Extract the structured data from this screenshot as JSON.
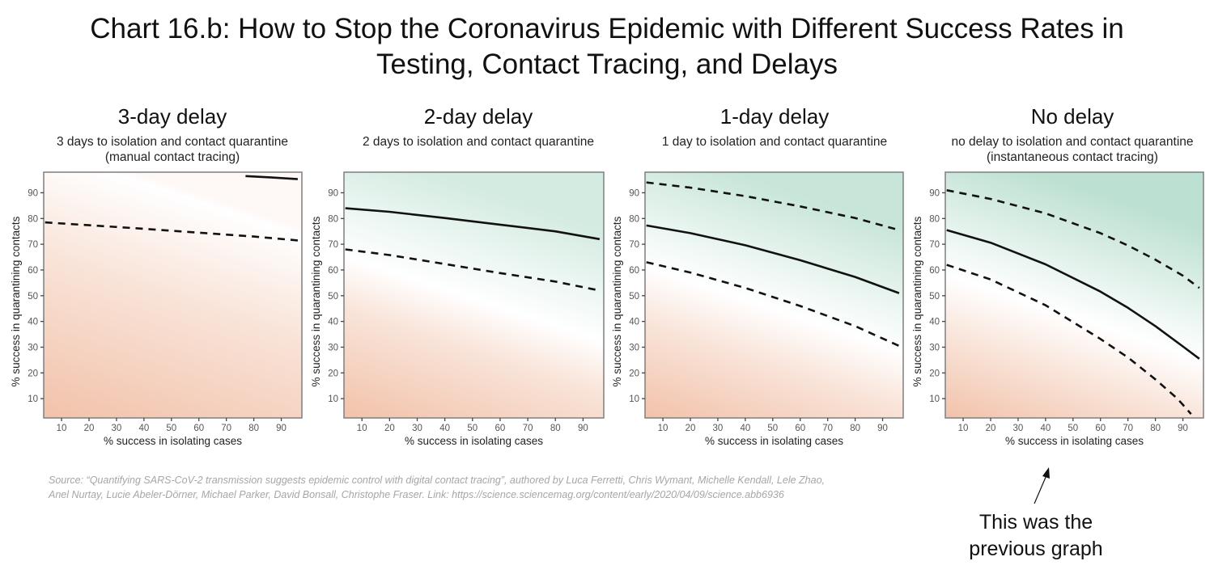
{
  "title_line1": "Chart 16.b: How to Stop the Coronavirus Epidemic with Different Success Rates in",
  "title_line2": "Testing, Contact Tracing, and Delays",
  "colors": {
    "salmon": "#f2c2aa",
    "white": "#ffffff",
    "green": "#a6d6c1",
    "line": "#111111",
    "frame": "#7f7f7f",
    "tick_text": "#555555"
  },
  "source": {
    "line1": "Source: “Quantifying SARS-CoV-2 transmission suggests epidemic control with digital contact tracing”, authored by Luca Ferretti, Chris Wymant, Michelle Kendall, Lele Zhao,",
    "line2": "Anel Nurtay, Lucie Abeler-Dörner, Michael Parker, David Bonsall, Christophe Fraser. Link: https://science.sciencemag.org/content/early/2020/04/09/science.abb6936"
  },
  "annotation": {
    "line1": "This was the",
    "line2": "previous graph"
  },
  "chart_data": [
    {
      "type": "line",
      "title": "3-day delay",
      "subtitle": "3 days to isolation and contact quarantine\n(manual contact tracing)",
      "xlabel": "% success in isolating cases",
      "ylabel": "% success in quarantining contacts",
      "xlim": [
        3.5,
        97.5
      ],
      "ylim": [
        2.5,
        98
      ],
      "xticks": [
        10,
        20,
        30,
        40,
        50,
        60,
        70,
        80,
        90
      ],
      "yticks": [
        10,
        20,
        30,
        40,
        50,
        60,
        70,
        80,
        90
      ],
      "background": "gradient: salmon (epidemic grows) to green (epidemic controlled)",
      "green_strength": 0.0,
      "series": [
        {
          "name": "R=1 threshold",
          "style": "solid",
          "x": [
            77,
            86,
            96
          ],
          "y": [
            96.5,
            96,
            95.3
          ]
        },
        {
          "name": "bound",
          "style": "dashed",
          "x": [
            4,
            20,
            40,
            60,
            80,
            96
          ],
          "y": [
            78.5,
            77.4,
            76,
            74.5,
            73,
            71.5
          ]
        }
      ]
    },
    {
      "type": "line",
      "title": "2-day delay",
      "subtitle": "2 days to isolation and contact quarantine",
      "xlabel": "% success in isolating cases",
      "ylabel": "% success in quarantining contacts",
      "xlim": [
        3.5,
        97.5
      ],
      "ylim": [
        2.5,
        98
      ],
      "xticks": [
        10,
        20,
        30,
        40,
        50,
        60,
        70,
        80,
        90
      ],
      "yticks": [
        10,
        20,
        30,
        40,
        50,
        60,
        70,
        80,
        90
      ],
      "background": "gradient: salmon (epidemic grows) to green (epidemic controlled)",
      "green_strength": 0.35,
      "series": [
        {
          "name": "R=1 threshold",
          "style": "solid",
          "x": [
            4,
            20,
            40,
            60,
            80,
            96
          ],
          "y": [
            84,
            82.6,
            80.2,
            77.6,
            75,
            72
          ]
        },
        {
          "name": "bound",
          "style": "dashed",
          "x": [
            4,
            20,
            40,
            60,
            80,
            96
          ],
          "y": [
            68,
            65.8,
            62.3,
            58.8,
            55.5,
            52
          ]
        }
      ]
    },
    {
      "type": "line",
      "title": "1-day delay",
      "subtitle": "1 day to isolation and contact quarantine",
      "xlabel": "% success in isolating cases",
      "ylabel": "% success in quarantining contacts",
      "xlim": [
        3.5,
        97.5
      ],
      "ylim": [
        2.5,
        98
      ],
      "xticks": [
        10,
        20,
        30,
        40,
        50,
        60,
        70,
        80,
        90
      ],
      "yticks": [
        10,
        20,
        30,
        40,
        50,
        60,
        70,
        80,
        90
      ],
      "background": "gradient: salmon (epidemic grows) to green (epidemic controlled)",
      "green_strength": 0.7,
      "series": [
        {
          "name": "upper bound",
          "style": "dashed",
          "x": [
            4,
            20,
            40,
            60,
            80,
            96
          ],
          "y": [
            94,
            92,
            88.7,
            84.7,
            80.2,
            75.5
          ]
        },
        {
          "name": "R=1 threshold",
          "style": "solid",
          "x": [
            4,
            20,
            40,
            60,
            80,
            96
          ],
          "y": [
            77.3,
            74.3,
            69.6,
            63.8,
            57.3,
            51
          ]
        },
        {
          "name": "lower bound",
          "style": "dashed",
          "x": [
            4,
            20,
            40,
            60,
            80,
            96
          ],
          "y": [
            63,
            59,
            53,
            46,
            38.2,
            30.5
          ]
        }
      ]
    },
    {
      "type": "line",
      "title": "No delay",
      "subtitle": "no delay to isolation and contact quarantine\n(instantaneous contact tracing)",
      "xlabel": "% success in isolating cases",
      "ylabel": "% success in quarantining contacts",
      "xlim": [
        3.5,
        97.5
      ],
      "ylim": [
        2.5,
        98
      ],
      "xticks": [
        10,
        20,
        30,
        40,
        50,
        60,
        70,
        80,
        90
      ],
      "yticks": [
        10,
        20,
        30,
        40,
        50,
        60,
        70,
        80,
        90
      ],
      "background": "gradient: salmon (epidemic grows) to green (epidemic controlled)",
      "green_strength": 1.0,
      "series": [
        {
          "name": "upper bound",
          "style": "dashed",
          "x": [
            4,
            20,
            40,
            60,
            70,
            80,
            90,
            96
          ],
          "y": [
            91,
            87.6,
            82,
            74.3,
            69.5,
            64,
            57.8,
            53
          ]
        },
        {
          "name": "R=1 threshold",
          "style": "solid",
          "x": [
            4,
            20,
            40,
            60,
            70,
            80,
            90,
            96
          ],
          "y": [
            75.5,
            70.6,
            62.2,
            51.6,
            45.3,
            38.2,
            30.3,
            25.5
          ]
        },
        {
          "name": "lower bound",
          "style": "dashed",
          "x": [
            4,
            20,
            40,
            60,
            70,
            80,
            88,
            93
          ],
          "y": [
            62,
            56.3,
            46.3,
            33.2,
            26,
            17.5,
            10,
            4
          ]
        }
      ]
    }
  ]
}
